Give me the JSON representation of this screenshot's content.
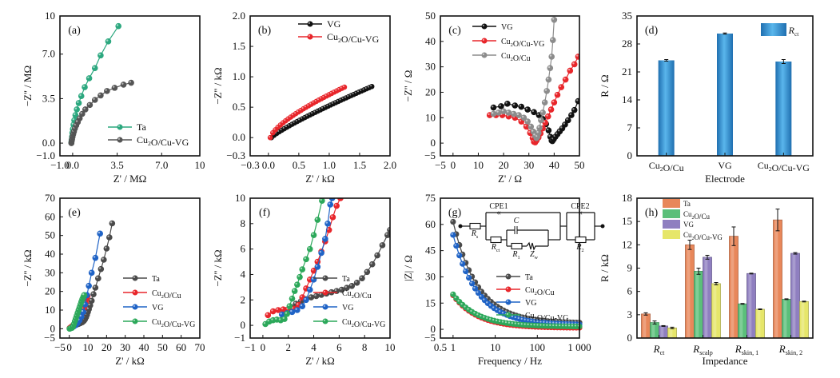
{
  "figure": {
    "panels": [
      "a",
      "b",
      "c",
      "d",
      "e",
      "f",
      "g",
      "h"
    ]
  },
  "chart_data": [
    {
      "id": "a",
      "type": "scatter",
      "label": "(a)",
      "xlabel": "Z' / MΩ",
      "ylabel": "−Z'' / MΩ",
      "xlim": [
        -1.0,
        10
      ],
      "ylim": [
        -1.0,
        10
      ],
      "xticks": [
        -1.0,
        0.0,
        3.5,
        7.0,
        10
      ],
      "yticks": [
        -1.0,
        0.0,
        3.5,
        7.0,
        10
      ],
      "xtick_labels": [
        "−1.0",
        "0.0",
        "3.5",
        "7.0",
        "10"
      ],
      "ytick_labels": [
        "−1.0",
        "0.0",
        "3.5",
        "7.0",
        "10"
      ],
      "legend": "bottom-right",
      "series": [
        {
          "name": "Ta",
          "color": "#2ca87f",
          "x": [
            -0.1,
            -0.08,
            -0.05,
            -0.02,
            0.02,
            0.07,
            0.13,
            0.22,
            0.33,
            0.48,
            0.68,
            0.95,
            1.3,
            1.75,
            2.2,
            2.8,
            3.6
          ],
          "y": [
            0.05,
            0.25,
            0.5,
            0.8,
            1.1,
            1.45,
            1.8,
            2.2,
            2.65,
            3.15,
            3.7,
            4.4,
            5.1,
            5.9,
            6.9,
            8.0,
            9.2
          ]
        },
        {
          "name": "Cu₂O/Cu-VG",
          "color": "#555555",
          "x": [
            -0.1,
            -0.08,
            -0.05,
            -0.01,
            0.04,
            0.1,
            0.18,
            0.28,
            0.4,
            0.55,
            0.75,
            1.0,
            1.35,
            1.75,
            2.2,
            2.7,
            3.3,
            4.0,
            4.6
          ],
          "y": [
            0.0,
            0.15,
            0.3,
            0.5,
            0.7,
            0.9,
            1.15,
            1.4,
            1.65,
            1.95,
            2.3,
            2.65,
            3.0,
            3.4,
            3.75,
            4.1,
            4.35,
            4.6,
            4.75
          ]
        }
      ]
    },
    {
      "id": "b",
      "type": "scatter",
      "label": "(b)",
      "xlabel": "Z' / kΩ",
      "ylabel": "−Z'' / kΩ",
      "xlim": [
        -0.3,
        2.0
      ],
      "ylim": [
        -0.3,
        2.0
      ],
      "xticks": [
        -0.3,
        0.0,
        0.5,
        1.0,
        1.5,
        2.0
      ],
      "yticks": [
        -0.3,
        0.0,
        0.5,
        1.0,
        1.5,
        2.0
      ],
      "xtick_labels": [
        "−0.3",
        "0.0",
        "0.5",
        "1.0",
        "1.5",
        "2.0"
      ],
      "ytick_labels": [
        "−0.3",
        "0.0",
        "0.5",
        "1.0",
        "1.5",
        "2.0"
      ],
      "legend": "top",
      "series": [
        {
          "name": "VG",
          "color": "#111111",
          "x_start": 0.05,
          "x_end": 1.7,
          "y_end": 0.84,
          "shape": 0.85,
          "points": 40
        },
        {
          "name": "Cu₂O/Cu-VG",
          "color": "#e8262b",
          "x_start": 0.03,
          "x_end": 1.25,
          "y_end": 0.83,
          "shape": 0.7,
          "points": 30
        }
      ]
    },
    {
      "id": "c",
      "type": "scatter",
      "label": "(c)",
      "xlabel": "Z' / Ω",
      "ylabel": "−Z'' / Ω",
      "xlim": [
        -5,
        50
      ],
      "ylim": [
        -5,
        50
      ],
      "xticks": [
        -5,
        0,
        10,
        20,
        30,
        40,
        50
      ],
      "yticks": [
        -5,
        0,
        10,
        20,
        30,
        40,
        50
      ],
      "xtick_labels": [
        "−5",
        "0",
        "10",
        "20",
        "30",
        "40",
        "50"
      ],
      "ytick_labels": [
        "−5",
        "0",
        "10",
        "20",
        "30",
        "40",
        "50"
      ],
      "legend": "top-left",
      "series": [
        {
          "name": "VG",
          "color": "#111111",
          "x": [
            16,
            19,
            21.5,
            24.5,
            27,
            29.5,
            32,
            34,
            35.5,
            36.8,
            37.8,
            38.5,
            39,
            39.3,
            39.8,
            40.5,
            41.3,
            42.2,
            43.2,
            44.3,
            45.5,
            46.8,
            48,
            49.5
          ],
          "y": [
            14,
            14.5,
            15.5,
            14.8,
            14.3,
            13.2,
            12.2,
            11,
            9.5,
            7.5,
            5,
            2.5,
            1,
            0.8,
            1.5,
            2.5,
            3.5,
            4.6,
            5.8,
            7.3,
            9,
            11,
            13,
            16.5
          ]
        },
        {
          "name": "Cu₂O/Cu-VG",
          "color": "#e8262b",
          "x": [
            14.5,
            17,
            19.5,
            22,
            24.5,
            27,
            29,
            30.5,
            31.5,
            32,
            32.5,
            33,
            33.8,
            34.6,
            35.5,
            36.5,
            37.6,
            38.8,
            40,
            41.3,
            42.8,
            44.5,
            46.3,
            48,
            49.5
          ],
          "y": [
            11,
            11,
            11,
            10.5,
            10,
            8.5,
            6.5,
            4,
            2,
            0.5,
            0.3,
            1,
            2.2,
            3.8,
            5.8,
            8,
            10.5,
            13.2,
            16,
            19,
            22,
            25,
            28.5,
            31,
            34
          ]
        },
        {
          "name": "Cu₂O/Cu",
          "color": "#8c8c8c",
          "x": [
            16,
            18,
            20,
            22,
            24,
            26,
            28,
            29.5,
            30.8,
            31.8,
            32.5,
            33,
            33.4,
            33.8,
            34.2,
            34.8,
            35.5,
            36.3,
            37.1,
            37.8,
            38.4,
            39,
            39.5,
            40
          ],
          "y": [
            11.5,
            12,
            12.5,
            12,
            11.5,
            11,
            10,
            8.5,
            6.5,
            4.5,
            3,
            2,
            2.5,
            4,
            6,
            9,
            12,
            16,
            20.5,
            25,
            29.5,
            34,
            40.5,
            48.5
          ]
        }
      ]
    },
    {
      "id": "d",
      "type": "bar",
      "label": "(d)",
      "xlabel": "Electrode",
      "ylabel": "R / Ω",
      "categories": [
        "Cu₂O/Cu",
        "VG",
        "Cu₂O/Cu-VG"
      ],
      "ylim": [
        0,
        35
      ],
      "yticks": [
        0,
        7,
        14,
        21,
        28,
        35
      ],
      "legend": "top-right",
      "series": [
        {
          "name": "R_ct",
          "legend_main": "R",
          "legend_sub": "ct",
          "color": "#3a9ad9",
          "values": [
            23.9,
            30.6,
            23.6
          ],
          "errors": [
            0.2,
            0.15,
            0.5
          ]
        }
      ]
    },
    {
      "id": "e",
      "type": "scatter",
      "label": "(e)",
      "xlabel": "Z' / kΩ",
      "ylabel": "−Z'' / kΩ",
      "xlim": [
        -5,
        70
      ],
      "ylim": [
        -5,
        70
      ],
      "xticks": [
        -5,
        0,
        10,
        20,
        30,
        40,
        50,
        60,
        70
      ],
      "yticks": [
        -5,
        0,
        10,
        20,
        30,
        40,
        50,
        60,
        70
      ],
      "xtick_labels": [
        "−5",
        "0",
        "10",
        "20",
        "30",
        "40",
        "50",
        "60",
        "70"
      ],
      "ytick_labels": [
        "−5",
        "0",
        "10",
        "20",
        "30",
        "40",
        "50",
        "60",
        "70"
      ],
      "legend": "bottom-right",
      "series": [
        {
          "name": "Ta",
          "color": "#4a4a4a",
          "x": [
            0.2,
            1,
            2,
            3,
            4,
            5,
            6,
            7,
            7.8,
            8.4,
            9,
            9.5,
            10,
            10.5,
            11.2,
            12,
            13,
            14,
            15.5,
            17,
            18.5,
            20,
            21.5,
            23
          ],
          "y": [
            0.2,
            0.8,
            1.3,
            1.8,
            2.2,
            2.6,
            3.0,
            3.5,
            4.2,
            5,
            6.2,
            7.5,
            9,
            10.5,
            12.5,
            15,
            18.5,
            22,
            27,
            32,
            37,
            43,
            49,
            56.5
          ]
        },
        {
          "name": "Cu₂O/Cu",
          "color": "#e8262b",
          "x": [
            0.3,
            1,
            2,
            3,
            4,
            5,
            5.8,
            6.5,
            7.2,
            7.8,
            8.3,
            8.8,
            9.3,
            9.8
          ],
          "y": [
            0.4,
            1,
            1.8,
            2.6,
            3.6,
            4.8,
            6,
            7.5,
            9,
            10.8,
            12.5,
            14.2,
            16,
            17.5
          ]
        },
        {
          "name": "VG",
          "color": "#1f63c6",
          "x": [
            1.5,
            2.5,
            3.5,
            4.5,
            5.5,
            6.5,
            7.5,
            8.5,
            9.5,
            10.5,
            12,
            14,
            16.5
          ],
          "y": [
            0.8,
            1.3,
            2,
            3,
            4.5,
            6.5,
            9,
            13,
            18,
            23,
            30,
            38,
            51
          ]
        },
        {
          "name": "Cu₂O/Cu-VG",
          "color": "#2ca85a",
          "x": [
            0.2,
            0.8,
            1.5,
            2,
            2.5,
            3,
            3.5,
            4,
            4.5,
            5,
            5.5,
            6,
            6.5,
            7,
            7.5,
            8
          ],
          "y": [
            0,
            0.3,
            0.5,
            1.2,
            2.5,
            4,
            5.5,
            7,
            8.5,
            10,
            11.5,
            13,
            14.5,
            15.8,
            17,
            18
          ]
        }
      ]
    },
    {
      "id": "f",
      "type": "scatter",
      "label": "(f)",
      "xlabel": "Z' / kΩ",
      "ylabel": "−Z'' / kΩ",
      "xlim": [
        -1,
        10
      ],
      "ylim": [
        -1,
        10
      ],
      "xticks": [
        -1,
        0,
        2,
        4,
        6,
        8,
        10
      ],
      "yticks": [
        -1,
        0,
        2,
        4,
        6,
        8,
        10
      ],
      "xtick_labels": [
        "−1",
        "0",
        "2",
        "4",
        "6",
        "8",
        "10"
      ],
      "ytick_labels": [
        "−1",
        "0",
        "2",
        "4",
        "6",
        "8",
        "10"
      ],
      "legend": "bottom-right",
      "series": [
        {
          "name": "Ta",
          "color": "#4a4a4a",
          "x": [
            1.8,
            2.2,
            2.6,
            3.0,
            3.4,
            3.8,
            4.2,
            4.6,
            5.0,
            5.4,
            5.8,
            6.2,
            6.6,
            7.0,
            7.4,
            7.8,
            8.2,
            8.6,
            9.0,
            9.4,
            9.8,
            10
          ],
          "y": [
            1.2,
            1.45,
            1.7,
            1.9,
            2.05,
            2.2,
            2.3,
            2.4,
            2.5,
            2.6,
            2.7,
            2.8,
            2.95,
            3.1,
            3.35,
            3.7,
            4.2,
            4.8,
            5.5,
            6.3,
            7.1,
            7.5
          ]
        },
        {
          "name": "Cu₂O/Cu",
          "color": "#e8262b",
          "x": [
            0.4,
            0.8,
            1.2,
            1.6,
            2.0,
            2.4,
            2.8,
            3.1,
            3.4,
            3.7,
            4.0,
            4.3,
            4.6,
            4.9,
            5.2,
            5.5,
            5.8,
            6.1
          ],
          "y": [
            0.8,
            1.1,
            1.2,
            1.25,
            1.25,
            1.3,
            1.6,
            2.2,
            2.9,
            3.6,
            4.3,
            5.0,
            5.8,
            6.6,
            7.5,
            8.5,
            9.4,
            10
          ]
        },
        {
          "name": "VG",
          "color": "#1f63c6",
          "x": [
            1.5,
            1.9,
            2.3,
            2.7,
            3.1,
            3.4,
            3.7,
            4.0,
            4.3,
            4.6,
            4.9,
            5.1,
            5.3,
            5.45
          ],
          "y": [
            0.85,
            0.95,
            1.05,
            1.2,
            1.5,
            2.0,
            2.8,
            3.6,
            4.6,
            5.7,
            6.8,
            8.0,
            9.5,
            10
          ]
        },
        {
          "name": "Cu₂O/Cu-VG",
          "color": "#2ca85a",
          "x": [
            0.2,
            0.5,
            0.8,
            1.1,
            1.4,
            1.7,
            1.9,
            2.1,
            2.3,
            2.5,
            2.7,
            2.9,
            3.1,
            3.4,
            3.7,
            4.0,
            4.3,
            4.65
          ],
          "y": [
            0.1,
            0.3,
            0.4,
            0.45,
            0.4,
            0.5,
            0.9,
            1.5,
            2.1,
            2.7,
            3.2,
            3.8,
            4.4,
            5.2,
            6.0,
            7.1,
            8.3,
            9.8
          ]
        }
      ]
    },
    {
      "id": "g",
      "type": "line",
      "label": "(g)",
      "xlabel": "Frequency / Hz",
      "ylabel": "|Z| / Ω",
      "xscale": "log",
      "xlim": [
        0.5,
        1000
      ],
      "ylim": [
        -5,
        75
      ],
      "xticks": [
        0.5,
        1,
        10,
        100,
        1000
      ],
      "xtick_labels": [
        "0.5",
        "1",
        "10",
        "100",
        "1 000"
      ],
      "yticks": [
        -5,
        0,
        15,
        30,
        45,
        60,
        75
      ],
      "ytick_labels": [
        "−5",
        "0",
        "15",
        "30",
        "45",
        "60",
        "75"
      ],
      "legend": "right",
      "series": [
        {
          "name": "Ta",
          "color": "#4a4a4a",
          "y_at_1Hz": 61.5,
          "y_at_1000Hz": 3.5
        },
        {
          "name": "Cu₂O/Cu",
          "color": "#e8262b",
          "y_at_1Hz": 19.5,
          "y_at_1000Hz": 0.8
        },
        {
          "name": "VG",
          "color": "#1f63c6",
          "y_at_1Hz": 54,
          "y_at_1000Hz": 2.5
        },
        {
          "name": "Cu₂O/Cu-VG",
          "color": "#2ca85a",
          "y_at_1Hz": 20,
          "y_at_1000Hz": 1.5
        }
      ],
      "inset": {
        "type": "equivalent-circuit",
        "labels": {
          "cpe1": "CPE1",
          "cpe2": "CPE2",
          "c": "C",
          "rs": "R",
          "rs_sub": "s",
          "rct": "R",
          "rct_sub": "ct",
          "r1": "R",
          "r1_sub": "1",
          "zw": "Z",
          "zw_sub": "w",
          "r2": "R",
          "r2_sub": "2"
        }
      }
    },
    {
      "id": "h",
      "type": "bar",
      "label": "(h)",
      "xlabel": "Impedance",
      "ylabel": "R / kΩ",
      "categories": [
        "R_ct",
        "R_scalp",
        "R_skin,1",
        "R_skin,2"
      ],
      "category_main": [
        "R",
        "R",
        "R",
        "R"
      ],
      "category_sub": [
        "ct",
        "scalp",
        "skin, 1",
        "skin, 2"
      ],
      "ylim": [
        0,
        18
      ],
      "yticks": [
        0,
        3,
        6,
        9,
        12,
        15,
        18
      ],
      "legend": "top-left",
      "series": [
        {
          "name": "Ta",
          "color": "#e8875a",
          "values": [
            3.1,
            12.0,
            13.1,
            15.2
          ],
          "errors": [
            0.15,
            0.6,
            1.2,
            1.4
          ]
        },
        {
          "name": "Cu₂O/Cu",
          "color": "#5bbf7a",
          "values": [
            2.0,
            8.6,
            4.4,
            5.0
          ],
          "errors": [
            0.2,
            0.4,
            0.05,
            0.05
          ]
        },
        {
          "name": "VG",
          "color": "#8f7fc0",
          "values": [
            1.55,
            10.4,
            8.3,
            10.9
          ],
          "errors": [
            0.05,
            0.25,
            0.05,
            0.1
          ]
        },
        {
          "name": "Cu₂O/Cu-VG",
          "color": "#e6e66a",
          "values": [
            1.3,
            7.0,
            3.7,
            4.7
          ],
          "errors": [
            0.1,
            0.15,
            0.05,
            0.05
          ]
        }
      ]
    }
  ]
}
